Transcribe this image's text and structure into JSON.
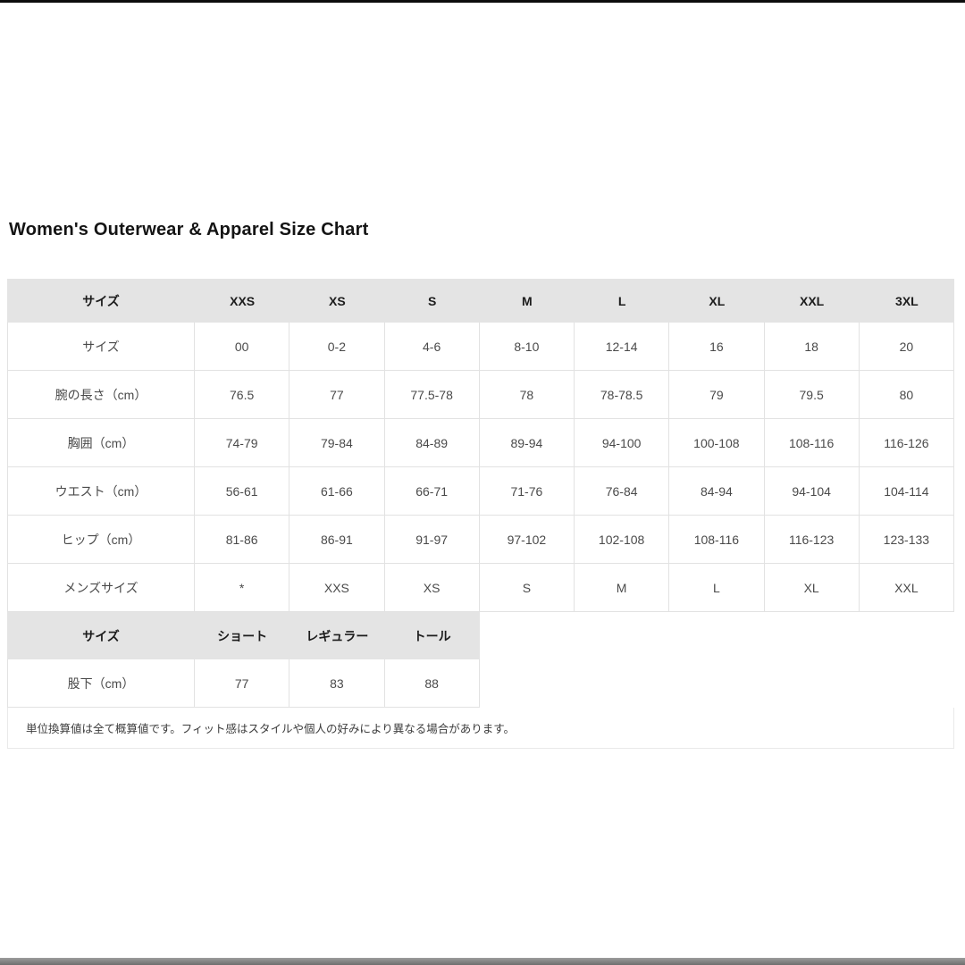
{
  "page": {
    "title": "Women's Outerwear & Apparel Size Chart"
  },
  "main_table": {
    "header": [
      "サイズ",
      "XXS",
      "XS",
      "S",
      "M",
      "L",
      "XL",
      "XXL",
      "3XL"
    ],
    "rows": [
      {
        "label": "サイズ",
        "values": [
          "00",
          "0-2",
          "4-6",
          "8-10",
          "12-14",
          "16",
          "18",
          "20"
        ]
      },
      {
        "label": "腕の長さ（cm）",
        "values": [
          "76.5",
          "77",
          "77.5-78",
          "78",
          "78-78.5",
          "79",
          "79.5",
          "80"
        ]
      },
      {
        "label": "胸囲（cm）",
        "values": [
          "74-79",
          "79-84",
          "84-89",
          "89-94",
          "94-100",
          "100-108",
          "108-116",
          "116-126"
        ]
      },
      {
        "label": "ウエスト（cm）",
        "values": [
          "56-61",
          "61-66",
          "66-71",
          "71-76",
          "76-84",
          "84-94",
          "94-104",
          "104-114"
        ]
      },
      {
        "label": "ヒップ（cm）",
        "values": [
          "81-86",
          "86-91",
          "91-97",
          "97-102",
          "102-108",
          "108-116",
          "116-123",
          "123-133"
        ]
      },
      {
        "label": "メンズサイズ",
        "values": [
          "*",
          "XXS",
          "XS",
          "S",
          "M",
          "L",
          "XL",
          "XXL"
        ]
      }
    ]
  },
  "length_table": {
    "header": [
      "サイズ",
      "ショート",
      "レギュラー",
      "トール"
    ],
    "rows": [
      {
        "label": "股下（cm）",
        "values": [
          "77",
          "83",
          "88"
        ]
      }
    ]
  },
  "footnote": {
    "text": "単位換算値は全て概算値です。フィット感はスタイルや個人の好みにより異なる場合があります。"
  },
  "colors": {
    "header_background": "#e4e4e4",
    "cell_border": "#e2e2e2",
    "top_edge": "#0d0d0d",
    "bottom_bar": "#7a7a7a"
  }
}
